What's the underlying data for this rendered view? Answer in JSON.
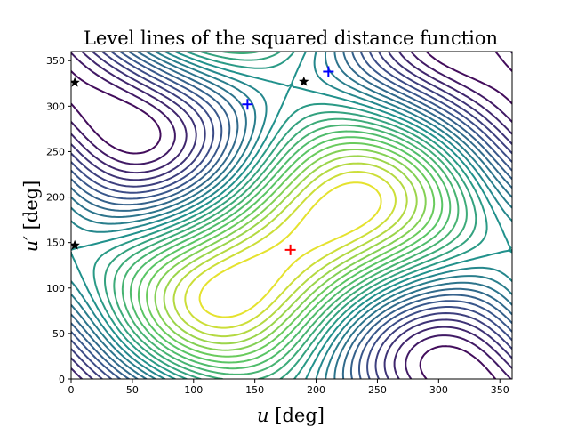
{
  "chart_data": {
    "type": "contour",
    "title": "Level lines of the squared distance function",
    "xlabel_symbol": "u",
    "xlabel_unit": "[deg]",
    "ylabel_symbol": "u′",
    "ylabel_unit": "[deg]",
    "xlim": [
      0,
      360
    ],
    "ylim": [
      0,
      360
    ],
    "x_ticks": [
      0,
      50,
      100,
      150,
      200,
      250,
      300,
      350
    ],
    "y_ticks": [
      0,
      50,
      100,
      150,
      200,
      250,
      300,
      350
    ],
    "grid": false,
    "colormap": "viridis",
    "colormap_stops": [
      "#440154",
      "#3b528b",
      "#21918c",
      "#5ec962",
      "#fde725"
    ],
    "contour_field": {
      "center": [
        179,
        142
      ],
      "coupling": 0.7,
      "levels": 26
    },
    "markers": [
      {
        "type": "plus",
        "color": "#ff0000",
        "x": 179,
        "y": 142
      },
      {
        "type": "plus",
        "color": "#0000ff",
        "x": 144,
        "y": 302
      },
      {
        "type": "plus",
        "color": "#0000ff",
        "x": 210,
        "y": 338
      },
      {
        "type": "star",
        "color": "#000000",
        "x": 3,
        "y": 326
      },
      {
        "type": "star",
        "color": "#000000",
        "x": 3,
        "y": 147
      },
      {
        "type": "star",
        "color": "#000000",
        "x": 190,
        "y": 327
      }
    ]
  }
}
